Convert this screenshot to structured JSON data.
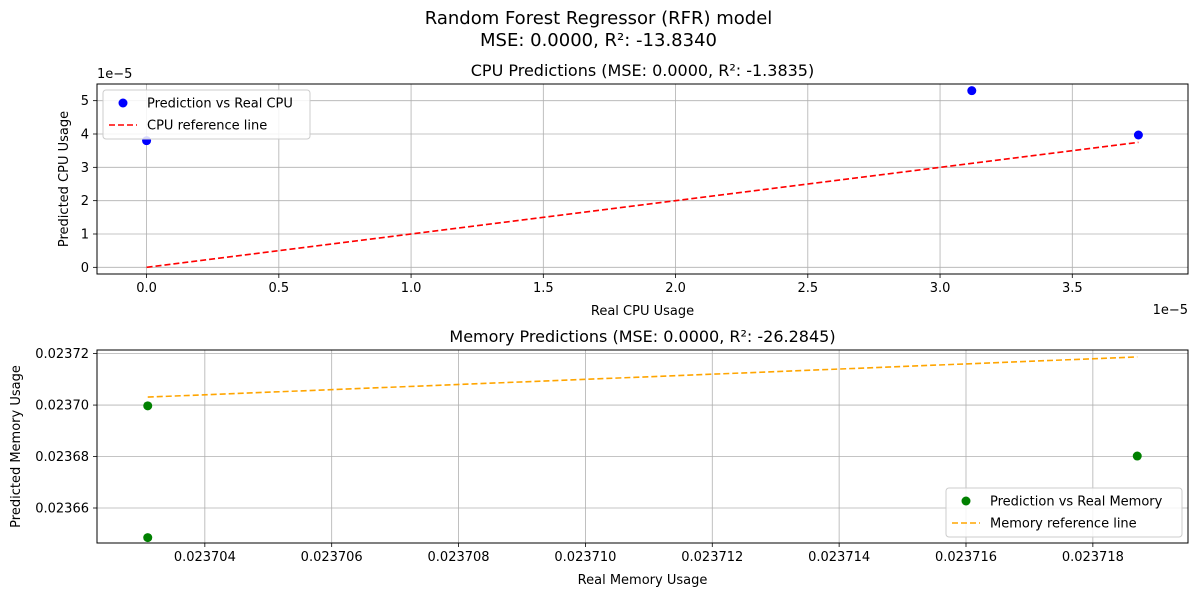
{
  "figure": {
    "title_line1": "Random Forest Regressor (RFR) model",
    "title_line2": "MSE: 0.0000, R²: -13.8340"
  },
  "chart_data": [
    {
      "type": "scatter",
      "title": "CPU Predictions (MSE: 0.0000, R²: -1.3835)",
      "xlabel": "Real CPU Usage",
      "ylabel": "Predicted CPU Usage",
      "x_offset_text": "1e−5",
      "y_offset_text": "1e−5",
      "xlim": [
        -0.1875,
        3.9375
      ],
      "ylim": [
        -0.2,
        5.5
      ],
      "x_ticks": [
        0.0,
        0.5,
        1.0,
        1.5,
        2.0,
        2.5,
        3.0,
        3.5
      ],
      "x_tick_labels": [
        "0.0",
        "0.5",
        "1.0",
        "1.5",
        "2.0",
        "2.5",
        "3.0",
        "3.5"
      ],
      "y_ticks": [
        0,
        1,
        2,
        3,
        4,
        5
      ],
      "y_tick_labels": [
        "0",
        "1",
        "2",
        "3",
        "4",
        "5"
      ],
      "grid": true,
      "legend_position": "upper-left",
      "series": [
        {
          "name": "Prediction vs Real CPU",
          "kind": "scatter",
          "color": "#0000ff",
          "points": [
            {
              "x": 0.0,
              "y": 3.8
            },
            {
              "x": 3.12,
              "y": 5.3
            },
            {
              "x": 3.75,
              "y": 3.97
            }
          ]
        },
        {
          "name": "CPU reference line",
          "kind": "dashed-line",
          "color": "#ff0000",
          "points": [
            {
              "x": 0.0,
              "y": 0.0
            },
            {
              "x": 3.75,
              "y": 3.75
            }
          ]
        }
      ]
    },
    {
      "type": "scatter",
      "title": "Memory Predictions (MSE: 0.0000, R²: -26.2845)",
      "xlabel": "Real Memory Usage",
      "ylabel": "Predicted Memory Usage",
      "xlim": [
        0.0237023,
        0.0237195
      ],
      "ylim": [
        0.0236464,
        0.0237214
      ],
      "x_ticks": [
        0.023704,
        0.023706,
        0.023708,
        0.02371,
        0.023712,
        0.023714,
        0.023716,
        0.023718
      ],
      "x_tick_labels": [
        "0.023704",
        "0.023706",
        "0.023708",
        "0.023710",
        "0.023712",
        "0.023714",
        "0.023716",
        "0.023718"
      ],
      "y_ticks": [
        0.02366,
        0.02368,
        0.0237,
        0.02372
      ],
      "y_tick_labels": [
        "0.02366",
        "0.02368",
        "0.02370",
        "0.02372"
      ],
      "grid": true,
      "legend_position": "lower-right",
      "series": [
        {
          "name": "Prediction vs Real Memory",
          "kind": "scatter",
          "color": "#008000",
          "points": [
            {
              "x": 0.0237031,
              "y": 0.0236997
            },
            {
              "x": 0.0237031,
              "y": 0.0236485
            },
            {
              "x": 0.0237187,
              "y": 0.0236802
            }
          ]
        },
        {
          "name": "Memory reference line",
          "kind": "dashed-line",
          "color": "#ffa500",
          "points": [
            {
              "x": 0.0237031,
              "y": 0.0237031
            },
            {
              "x": 0.0237187,
              "y": 0.0237187
            }
          ]
        }
      ]
    }
  ]
}
